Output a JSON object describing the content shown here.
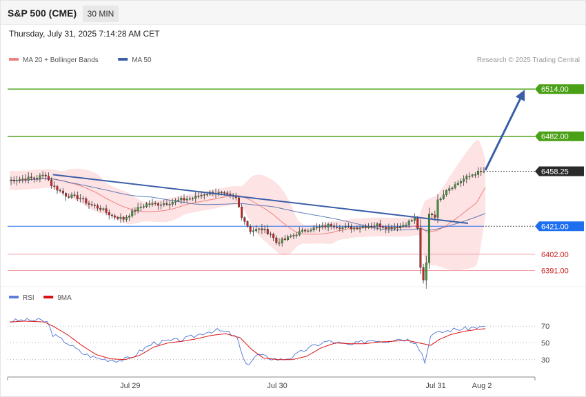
{
  "header": {
    "title": "S&P 500 (CME)",
    "timeframe": "30 MIN",
    "timestamp": "Thursday, July 31, 2025 7:14:28 AM CET"
  },
  "credit": "Research © 2025 Trading Central",
  "colors": {
    "bull": "#3a9a3a",
    "bear": "#cc2222",
    "band_fill": "#fde0e0",
    "ma20": "#f08080",
    "ma50": "#3a5fa8",
    "resistance": "#4aa016",
    "support_pivot": "#1e6ef0",
    "support": "#f4a0a8",
    "rsi": "#5b7fd8",
    "rsi_ma": "#dd1111"
  },
  "chart_data": [
    {
      "type": "candlestick",
      "legend": [
        {
          "name": "MA 20 + Bollinger Bands",
          "color": "#f08080"
        },
        {
          "name": "MA 50",
          "color": "#3a5fa8"
        }
      ],
      "x_labels": [
        "Jul 29",
        "Jul 30",
        "Jul 31",
        "Aug 2"
      ],
      "x_label_index": [
        43,
        94,
        149,
        165
      ],
      "bar_count": 165,
      "y_range": [
        6380,
        6530
      ],
      "last_price": "6458.25",
      "levels": [
        {
          "label": "6514.00",
          "value": 6514,
          "kind": "resistance"
        },
        {
          "label": "6482.00",
          "value": 6482,
          "kind": "resistance"
        },
        {
          "label": "6458.25",
          "value": 6458.25,
          "kind": "last"
        },
        {
          "label": "6421.00",
          "value": 6421,
          "kind": "pivot"
        },
        {
          "label": "6402.00",
          "value": 6402,
          "kind": "support"
        },
        {
          "label": "6391.00",
          "value": 6391,
          "kind": "support"
        }
      ],
      "anchors": [
        [
          0,
          6452
        ],
        [
          4,
          6453
        ],
        [
          10,
          6454
        ],
        [
          13,
          6456
        ],
        [
          15,
          6449
        ],
        [
          20,
          6442
        ],
        [
          25,
          6440
        ],
        [
          28,
          6436
        ],
        [
          32,
          6433
        ],
        [
          36,
          6428
        ],
        [
          40,
          6426
        ],
        [
          44,
          6432
        ],
        [
          48,
          6436
        ],
        [
          52,
          6436
        ],
        [
          56,
          6437
        ],
        [
          60,
          6439
        ],
        [
          64,
          6440
        ],
        [
          68,
          6443
        ],
        [
          72,
          6444
        ],
        [
          76,
          6442
        ],
        [
          79,
          6440
        ],
        [
          81,
          6428
        ],
        [
          84,
          6418
        ],
        [
          88,
          6419
        ],
        [
          91,
          6416
        ],
        [
          93,
          6410
        ],
        [
          96,
          6412
        ],
        [
          100,
          6416
        ],
        [
          104,
          6419
        ],
        [
          108,
          6420
        ],
        [
          112,
          6422
        ],
        [
          116,
          6420
        ],
        [
          120,
          6420
        ],
        [
          124,
          6421
        ],
        [
          128,
          6422
        ],
        [
          132,
          6420
        ],
        [
          136,
          6421
        ],
        [
          139,
          6424
        ],
        [
          141,
          6426
        ],
        [
          142,
          6420
        ],
        [
          143,
          6392
        ],
        [
          144,
          6384
        ],
        [
          145,
          6396
        ],
        [
          146,
          6430
        ],
        [
          147,
          6429
        ],
        [
          148,
          6428
        ],
        [
          149,
          6438
        ],
        [
          152,
          6446
        ],
        [
          155,
          6449
        ],
        [
          158,
          6453
        ],
        [
          162,
          6457
        ],
        [
          165,
          6458.25
        ]
      ],
      "trend_lines": [
        {
          "from": [
            15,
            6456
          ],
          "to": [
            159,
            6423
          ],
          "color": "#3a5fa8"
        },
        {
          "from": [
            165,
            6459
          ],
          "to": [
            178,
            6511
          ],
          "color": "#3a5fa8",
          "arrow": true
        }
      ]
    },
    {
      "type": "line",
      "name": "RSI",
      "legend": [
        {
          "name": "RSI",
          "color": "#5b7fd8"
        },
        {
          "name": "9MA",
          "color": "#dd1111"
        }
      ],
      "levels": [
        70,
        50,
        30
      ],
      "level_labels": [
        "70",
        "50",
        "30"
      ],
      "y_range": [
        15,
        85
      ],
      "rsi_anchors": [
        [
          0,
          76
        ],
        [
          4,
          77
        ],
        [
          10,
          77
        ],
        [
          13,
          75
        ],
        [
          15,
          60
        ],
        [
          20,
          50
        ],
        [
          25,
          38
        ],
        [
          30,
          32
        ],
        [
          34,
          30
        ],
        [
          38,
          29
        ],
        [
          42,
          32
        ],
        [
          46,
          42
        ],
        [
          50,
          50
        ],
        [
          55,
          52
        ],
        [
          60,
          54
        ],
        [
          64,
          58
        ],
        [
          68,
          63
        ],
        [
          72,
          65
        ],
        [
          76,
          62
        ],
        [
          79,
          55
        ],
        [
          81,
          30
        ],
        [
          83,
          25
        ],
        [
          86,
          36
        ],
        [
          90,
          32
        ],
        [
          94,
          30
        ],
        [
          98,
          33
        ],
        [
          102,
          41
        ],
        [
          106,
          47
        ],
        [
          110,
          52
        ],
        [
          114,
          50
        ],
        [
          118,
          47
        ],
        [
          122,
          51
        ],
        [
          126,
          54
        ],
        [
          130,
          52
        ],
        [
          134,
          55
        ],
        [
          138,
          54
        ],
        [
          141,
          51
        ],
        [
          143,
          37
        ],
        [
          144,
          27
        ],
        [
          145,
          42
        ],
        [
          146,
          60
        ],
        [
          150,
          63
        ],
        [
          154,
          66
        ],
        [
          158,
          67
        ],
        [
          162,
          69
        ],
        [
          165,
          70
        ]
      ],
      "ma_anchors": [
        [
          0,
          75
        ],
        [
          5,
          76
        ],
        [
          12,
          75
        ],
        [
          15,
          70
        ],
        [
          20,
          60
        ],
        [
          25,
          47
        ],
        [
          30,
          36
        ],
        [
          35,
          31
        ],
        [
          40,
          30
        ],
        [
          45,
          35
        ],
        [
          50,
          45
        ],
        [
          55,
          50
        ],
        [
          60,
          52
        ],
        [
          65,
          55
        ],
        [
          70,
          59
        ],
        [
          75,
          61
        ],
        [
          80,
          56
        ],
        [
          84,
          42
        ],
        [
          88,
          32
        ],
        [
          93,
          30
        ],
        [
          98,
          30
        ],
        [
          103,
          34
        ],
        [
          108,
          44
        ],
        [
          113,
          50
        ],
        [
          118,
          49
        ],
        [
          123,
          49
        ],
        [
          128,
          51
        ],
        [
          133,
          52
        ],
        [
          138,
          53
        ],
        [
          142,
          50
        ],
        [
          146,
          47
        ],
        [
          149,
          54
        ],
        [
          153,
          60
        ],
        [
          158,
          64
        ],
        [
          162,
          66
        ],
        [
          165,
          67
        ]
      ]
    }
  ]
}
